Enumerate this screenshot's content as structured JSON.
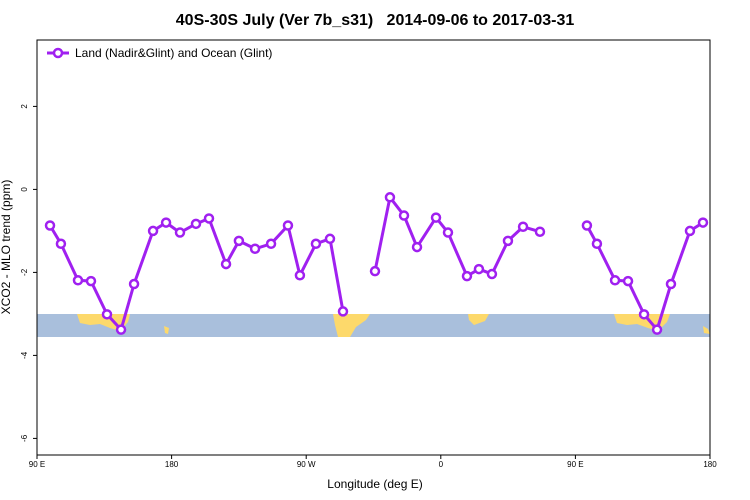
{
  "chart_data": {
    "type": "line",
    "title": "40S-30S July (Ver 7b_s31)   2014-09-06 to 2017-03-31",
    "xlabel": "Longitude (deg E)",
    "ylabel": "XCO2 - MLO trend (ppm)",
    "x": [
      98.7,
      106,
      117.4,
      126.1,
      136.8,
      146.2,
      154.9,
      167.6,
      176.3,
      185.6,
      196.3,
      205,
      216.4,
      225,
      235.8,
      246.5,
      257.8,
      265.8,
      276.5,
      285.9,
      294.6,
      305,
      316,
      326,
      335.4,
      344.1,
      356.8,
      364.8,
      377.5,
      385.5,
      394.2,
      404.9,
      415,
      426.3,
      442,
      457.7,
      464.4,
      476.5,
      485.2,
      495.9,
      504.6,
      513.9,
      526.6,
      535.3
    ],
    "series": [
      {
        "name": "Land (Nadir&Glint) and Ocean (Glint)",
        "color": "#a020f0",
        "values": [
          -0.87,
          -1.31,
          -2.19,
          -2.21,
          -3.01,
          -3.38,
          -2.28,
          -1.0,
          -0.8,
          -1.04,
          -0.83,
          -0.7,
          -1.8,
          -1.24,
          -1.43,
          -1.31,
          -0.87,
          -2.07,
          -1.31,
          -1.19,
          -2.94,
          null,
          -1.97,
          -0.19,
          -0.63,
          -1.39,
          -0.68,
          -1.04,
          -2.09,
          -1.92,
          -2.04,
          -1.24,
          -0.9,
          -1.02,
          null,
          -0.87,
          -1.31,
          -2.19,
          -2.21,
          -3.01,
          -3.38,
          -2.28,
          -1.0,
          -0.8
        ]
      }
    ],
    "xlim": [
      90,
      540
    ],
    "xticks": [
      {
        "value": 90,
        "label": "90 E"
      },
      {
        "value": 180,
        "label": "180"
      },
      {
        "value": 270,
        "label": "90 W"
      },
      {
        "value": 360,
        "label": "0"
      },
      {
        "value": 450,
        "label": "90 E"
      },
      {
        "value": 540,
        "label": "180"
      }
    ],
    "ylim": [
      -6.4,
      3.6
    ],
    "yticks": [
      2,
      0,
      -2,
      -4,
      -6
    ],
    "legend": "top-left"
  }
}
